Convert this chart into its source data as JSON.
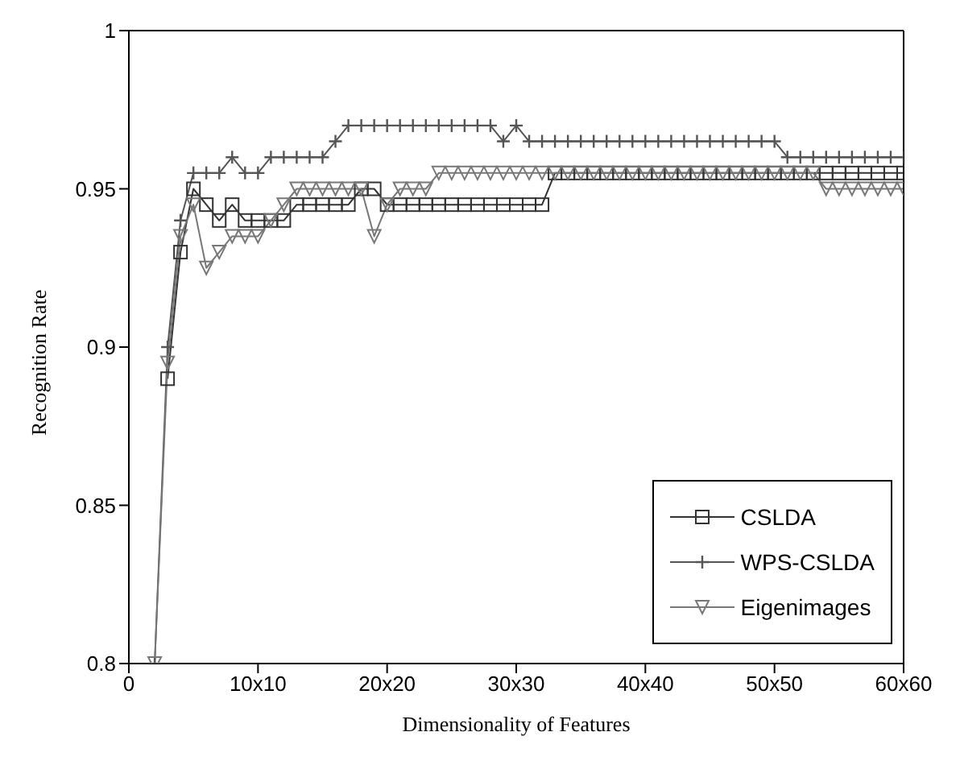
{
  "chart_data": {
    "type": "line",
    "xlabel": "Dimensionality of Features",
    "ylabel": "Recognition Rate",
    "categories": [
      "0",
      null,
      null,
      null,
      null,
      null,
      null,
      null,
      null,
      null,
      "10x10",
      null,
      null,
      null,
      null,
      null,
      null,
      null,
      null,
      null,
      "20x20",
      null,
      null,
      null,
      null,
      null,
      null,
      null,
      null,
      null,
      "30x30",
      null,
      null,
      null,
      null,
      null,
      null,
      null,
      null,
      null,
      "40x40",
      null,
      null,
      null,
      null,
      null,
      null,
      null,
      null,
      null,
      "50x50",
      null,
      null,
      null,
      null,
      null,
      null,
      null,
      null,
      null,
      "60x60"
    ],
    "series": [
      {
        "name": "CSLDA",
        "color": "#333333",
        "marker": "square",
        "values": [
          null,
          null,
          null,
          0.89,
          0.93,
          0.95,
          0.945,
          0.94,
          0.945,
          0.94,
          0.94,
          0.94,
          0.94,
          0.945,
          0.945,
          0.945,
          0.945,
          0.945,
          0.95,
          0.95,
          0.945,
          0.945,
          0.945,
          0.945,
          0.945,
          0.945,
          0.945,
          0.945,
          0.945,
          0.945,
          0.945,
          0.945,
          0.945,
          0.955,
          0.955,
          0.955,
          0.955,
          0.955,
          0.955,
          0.955,
          0.955,
          0.955,
          0.955,
          0.955,
          0.955,
          0.955,
          0.955,
          0.955,
          0.955,
          0.955,
          0.955,
          0.955,
          0.955,
          0.955,
          0.955,
          0.955,
          0.955,
          0.955,
          0.955,
          0.955,
          0.955
        ]
      },
      {
        "name": "WPS-CSLDA",
        "color": "#555555",
        "marker": "cross",
        "values": [
          null,
          null,
          0.8,
          0.9,
          0.94,
          0.955,
          0.955,
          0.955,
          0.96,
          0.955,
          0.955,
          0.96,
          0.96,
          0.96,
          0.96,
          0.96,
          0.965,
          0.97,
          0.97,
          0.97,
          0.97,
          0.97,
          0.97,
          0.97,
          0.97,
          0.97,
          0.97,
          0.97,
          0.97,
          0.965,
          0.97,
          0.965,
          0.965,
          0.965,
          0.965,
          0.965,
          0.965,
          0.965,
          0.965,
          0.965,
          0.965,
          0.965,
          0.965,
          0.965,
          0.965,
          0.965,
          0.965,
          0.965,
          0.965,
          0.965,
          0.965,
          0.96,
          0.96,
          0.96,
          0.96,
          0.96,
          0.96,
          0.96,
          0.96,
          0.96,
          0.96
        ]
      },
      {
        "name": "Eigenimages",
        "color": "#777777",
        "marker": "triangle",
        "values": [
          null,
          null,
          0.8,
          0.895,
          0.935,
          0.945,
          0.925,
          0.93,
          0.935,
          0.935,
          0.935,
          0.94,
          0.945,
          0.95,
          0.95,
          0.95,
          0.95,
          0.95,
          0.95,
          0.935,
          0.945,
          0.95,
          0.95,
          0.95,
          0.955,
          0.955,
          0.955,
          0.955,
          0.955,
          0.955,
          0.955,
          0.955,
          0.955,
          0.955,
          0.955,
          0.955,
          0.955,
          0.955,
          0.955,
          0.955,
          0.955,
          0.955,
          0.955,
          0.955,
          0.955,
          0.955,
          0.955,
          0.955,
          0.955,
          0.955,
          0.955,
          0.955,
          0.955,
          0.955,
          0.95,
          0.95,
          0.95,
          0.95,
          0.95,
          0.95,
          0.95
        ]
      }
    ],
    "ylim": [
      0.8,
      1
    ],
    "yticks": [
      0.8,
      0.85,
      0.9,
      0.95,
      1
    ],
    "legend": "bottom right",
    "line_style": "solid"
  }
}
